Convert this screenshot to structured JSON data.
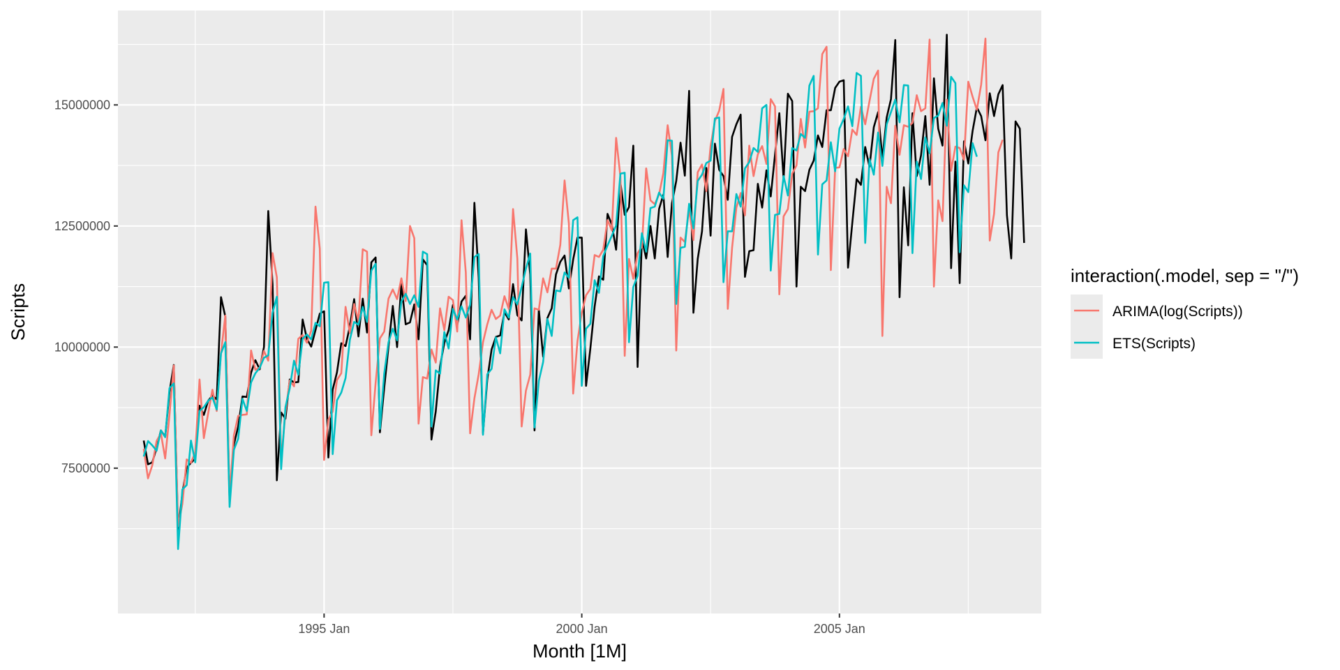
{
  "chart_data": {
    "type": "line",
    "xlabel": "Month [1M]",
    "ylabel": "Scripts",
    "xlim": [
      "1991-01",
      "2008-12"
    ],
    "ylim": [
      4500000,
      16950000
    ],
    "x_ticks": [
      {
        "date": "1995-01",
        "label": "1995 Jan"
      },
      {
        "date": "2000-01",
        "label": "2000 Jan"
      },
      {
        "date": "2005-01",
        "label": "2005 Jan"
      }
    ],
    "x_minor_ticks": [
      "1992-07",
      "1997-07",
      "2002-07",
      "2007-07"
    ],
    "y_ticks": [
      7500000,
      10000000,
      12500000,
      15000000
    ],
    "y_tick_labels": [
      "7500000",
      "10000000",
      "12500000",
      "15000000"
    ],
    "y_minor_ticks": [
      6250000,
      8750000,
      11250000,
      13750000,
      16250000
    ],
    "grid": true,
    "panel_background": "#ebebeb",
    "legend": {
      "title": "interaction(.model, sep = \"/\")",
      "position": "right",
      "entries": [
        {
          "label": "ARIMA(log(Scripts))",
          "color": "#f8766d"
        },
        {
          "label": "ETS(Scripts)",
          "color": "#00bfc4"
        }
      ]
    },
    "series": [
      {
        "color": "#000000",
        "start": "1991-07",
        "values": [
          8070000,
          7580000,
          7620000,
          7920000,
          8280000,
          8150000,
          9070000,
          9630000,
          6210000,
          6980000,
          7510000,
          7610000,
          7700000,
          8790000,
          8600000,
          8890000,
          9000000,
          8920000,
          11030000,
          10630000,
          6800000,
          7990000,
          8360000,
          8980000,
          8970000,
          9470000,
          9730000,
          9540000,
          10000000,
          12810000,
          11300000,
          7250000,
          8650000,
          8520000,
          9330000,
          9270000,
          9280000,
          10570000,
          10170000,
          10010000,
          10350000,
          10690000,
          10740000,
          7720000,
          9120000,
          9480000,
          10080000,
          10020000,
          10430000,
          10990000,
          10220000,
          11000000,
          10300000,
          11750000,
          11850000,
          8240000,
          9160000,
          10010000,
          10850000,
          10000000,
          11310000,
          10470000,
          10510000,
          10880000,
          10160000,
          11810000,
          11690000,
          8090000,
          8670000,
          9600000,
          10090000,
          10350000,
          10870000,
          10450000,
          10940000,
          11060000,
          10160000,
          12980000,
          11430000,
          8220000,
          9330000,
          9950000,
          10210000,
          10240000,
          10720000,
          10570000,
          11300000,
          10660000,
          10550000,
          12430000,
          11500000,
          8280000,
          10780000,
          9800000,
          10600000,
          10800000,
          11500000,
          11760000,
          11890000,
          11210000,
          11810000,
          12260000,
          12260000,
          9200000,
          9970000,
          10840000,
          11460000,
          11390000,
          12750000,
          12530000,
          12010000,
          13390000,
          12730000,
          12890000,
          14160000,
          9590000,
          12240000,
          11830000,
          12500000,
          11830000,
          12850000,
          13150000,
          11860000,
          12970000,
          13430000,
          14220000,
          13540000,
          15290000,
          10710000,
          11820000,
          12390000,
          13700000,
          12300000,
          14200000,
          13660000,
          13530000,
          13040000,
          14340000,
          14600000,
          14800000,
          11450000,
          11980000,
          12000000,
          13370000,
          12880000,
          13650000,
          13110000,
          13970000,
          14830000,
          13470000,
          15230000,
          15080000,
          11250000,
          13310000,
          13220000,
          13660000,
          13850000,
          14370000,
          14130000,
          14890000,
          14890000,
          15350000,
          15480000,
          15510000,
          11640000,
          12570000,
          13470000,
          13350000,
          14130000,
          13720000,
          14540000,
          14850000,
          13890000,
          14740000,
          15120000,
          16340000,
          11030000,
          13300000,
          12100000,
          14830000,
          13530000,
          13960000,
          14770000,
          13350000,
          15550000,
          14510000,
          14160000,
          16450000,
          11630000,
          13830000,
          11320000,
          14250000,
          13790000,
          14460000,
          14950000,
          14770000,
          14270000,
          15240000,
          14770000,
          15220000,
          15410000,
          12720000,
          11830000,
          14660000,
          14510000,
          12150000
        ]
      },
      {
        "name": "ARIMA(log(Scripts))",
        "color": "#f8766d",
        "start": "1991-07",
        "values": [
          7900000,
          7290000,
          7560000,
          8060000,
          8220000,
          7700000,
          8600000,
          9620000,
          6300000,
          6760000,
          7680000,
          7610000,
          7830000,
          9330000,
          8120000,
          8630000,
          9120000,
          8680000,
          9880000,
          10650000,
          6930000,
          8180000,
          8580000,
          8600000,
          8610000,
          9930000,
          9530000,
          9580000,
          9920000,
          9720000,
          11940000,
          11440000,
          7650000,
          8650000,
          9310000,
          9190000,
          10170000,
          10250000,
          10090000,
          10340000,
          12900000,
          12030000,
          7670000,
          8500000,
          8670000,
          9320000,
          9460000,
          10830000,
          10290000,
          10890000,
          10540000,
          12020000,
          11970000,
          8180000,
          9260000,
          10180000,
          10320000,
          11000000,
          11190000,
          10990000,
          11420000,
          10950000,
          12500000,
          12250000,
          8420000,
          9380000,
          9350000,
          9950000,
          9680000,
          10800000,
          10350000,
          11040000,
          10970000,
          10320000,
          12620000,
          11540000,
          8220000,
          8940000,
          9440000,
          10100000,
          10470000,
          10770000,
          10580000,
          10650000,
          11050000,
          10790000,
          12850000,
          11830000,
          8360000,
          9100000,
          9430000,
          10800000,
          10770000,
          11420000,
          11130000,
          11620000,
          11620000,
          12110000,
          13440000,
          12550000,
          9040000,
          10120000,
          10710000,
          11070000,
          11200000,
          11900000,
          11860000,
          12010000,
          12620000,
          12410000,
          14320000,
          13520000,
          9820000,
          11820000,
          11410000,
          11940000,
          12070000,
          13690000,
          13030000,
          12950000,
          13150000,
          13590000,
          14580000,
          13950000,
          9930000,
          12260000,
          12170000,
          12850000,
          12210000,
          13610000,
          13770000,
          13220000,
          14150000,
          14670000,
          14880000,
          15330000,
          10790000,
          12050000,
          12880000,
          13180000,
          12720000,
          14160000,
          13530000,
          13980000,
          14150000,
          13780000,
          15120000,
          14970000,
          11090000,
          12700000,
          12850000,
          13580000,
          13750000,
          14710000,
          14120000,
          14860000,
          14870000,
          14930000,
          16050000,
          16200000,
          11590000,
          13700000,
          13710000,
          14090000,
          13940000,
          14490000,
          14380000,
          14960000,
          14600000,
          15080000,
          15540000,
          15710000,
          10230000,
          13310000,
          12970000,
          14570000,
          13970000,
          14580000,
          14550000,
          14630000,
          15200000,
          14870000,
          14930000,
          16350000,
          11250000,
          13030000,
          12600000,
          15110000,
          13640000,
          14140000,
          14110000,
          13870000,
          15480000,
          15170000,
          14900000,
          15420000,
          16370000,
          12200000,
          12750000,
          14020000,
          14280000
        ]
      },
      {
        "name": "ETS(Scripts)",
        "color": "#00bfc4",
        "start": "1991-07",
        "values": [
          7740000,
          8060000,
          7970000,
          7860000,
          8280000,
          8140000,
          9150000,
          9250000,
          5830000,
          7060000,
          7150000,
          8070000,
          7620000,
          8680000,
          8760000,
          8890000,
          8960000,
          8710000,
          9870000,
          10100000,
          6700000,
          7880000,
          8110000,
          8930000,
          8680000,
          9270000,
          9460000,
          9570000,
          9780000,
          9830000,
          10710000,
          11040000,
          7480000,
          8760000,
          9150000,
          9720000,
          9430000,
          10170000,
          10260000,
          10160000,
          10500000,
          10430000,
          11330000,
          11340000,
          7790000,
          8900000,
          9060000,
          9360000,
          10150000,
          10520000,
          10460000,
          10830000,
          10520000,
          11580000,
          11720000,
          8310000,
          9450000,
          10100000,
          10380000,
          10140000,
          10940000,
          11100000,
          10890000,
          11070000,
          10830000,
          11970000,
          11920000,
          8360000,
          9520000,
          9450000,
          10310000,
          9970000,
          10790000,
          10570000,
          10840000,
          10610000,
          10870000,
          11860000,
          11920000,
          8190000,
          9440000,
          9550000,
          10200000,
          9870000,
          10780000,
          10610000,
          11030000,
          10880000,
          11240000,
          11620000,
          11930000,
          8340000,
          9300000,
          9690000,
          10580000,
          10230000,
          11170000,
          11150000,
          11540000,
          11430000,
          12620000,
          12680000,
          9200000,
          10380000,
          10480000,
          11380000,
          11120000,
          11880000,
          12100000,
          12300000,
          12510000,
          13580000,
          13600000,
          10100000,
          11240000,
          11470000,
          12350000,
          11970000,
          12870000,
          12900000,
          13190000,
          13060000,
          14270000,
          14260000,
          10890000,
          12050000,
          12070000,
          12960000,
          12450000,
          13430000,
          13560000,
          13800000,
          13850000,
          14720000,
          14740000,
          11340000,
          12390000,
          12390000,
          13160000,
          12900000,
          13690000,
          13820000,
          14110000,
          14030000,
          14930000,
          15000000,
          11580000,
          12730000,
          12750000,
          13530000,
          13130000,
          14110000,
          14060000,
          14400000,
          14320000,
          15400000,
          15600000,
          11910000,
          13360000,
          13440000,
          14230000,
          13630000,
          14510000,
          14710000,
          14970000,
          14560000,
          15660000,
          15600000,
          12150000,
          13880000,
          13560000,
          14430000,
          13740000,
          14600000,
          14850000,
          15110000,
          14640000,
          15410000,
          15400000,
          11940000,
          13830000,
          13470000,
          14330000,
          14000000,
          14730000,
          14780000,
          15040000,
          14570000,
          15580000,
          15450000,
          11960000,
          13340000,
          13200000,
          14210000,
          13930000
        ]
      }
    ]
  }
}
